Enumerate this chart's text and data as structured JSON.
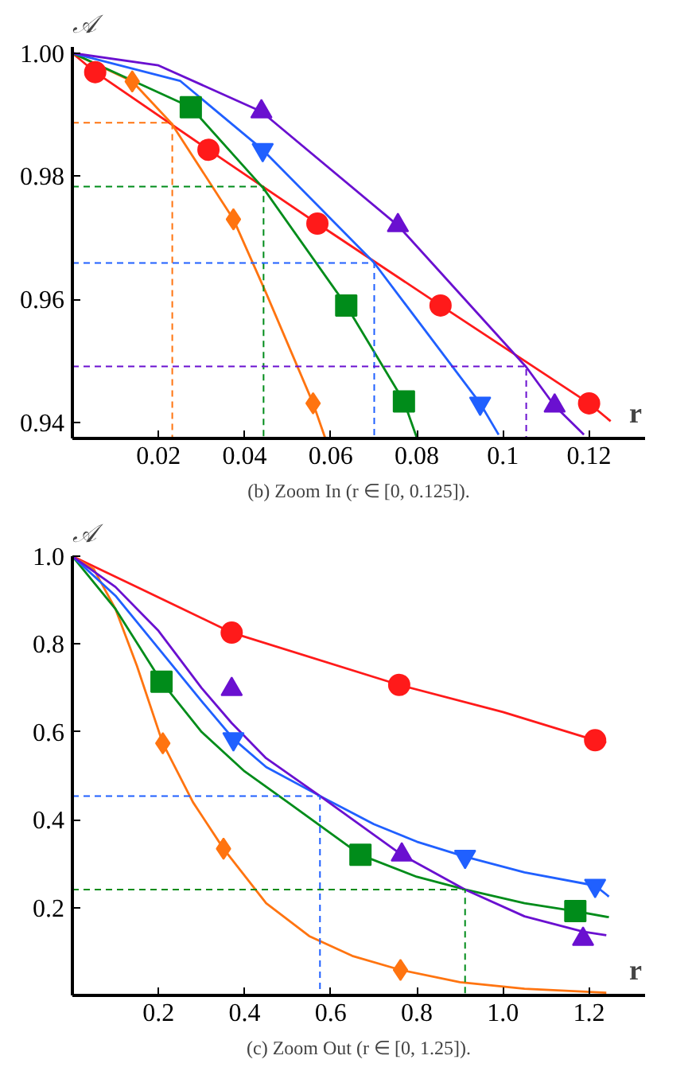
{
  "chart_data": [
    {
      "type": "line",
      "ylabel": "𝒜",
      "xlabel": "r",
      "annotations": [
        "(b) Zoom In (r ∈ [0, 0.125])."
      ],
      "xlim": [
        0,
        0.133
      ],
      "ylim": [
        0.9374,
        1.001
      ],
      "xticks": [
        0.02,
        0.04,
        0.06,
        0.08,
        0.1,
        0.12
      ],
      "yticks": [
        0.94,
        0.96,
        0.98,
        {
          "value": 1.0,
          "label": "1.00"
        }
      ],
      "grid": false,
      "series": [
        {
          "color": "#ff1a1a",
          "x": [
            0,
            0.0053,
            0.0316,
            0.0569,
            0.0855,
            0.12,
            0.125
          ],
          "values": [
            1.0,
            0.9969,
            0.9843,
            0.9723,
            0.959,
            0.9431,
            0.9402
          ]
        },
        {
          "color": "#ff7410",
          "x": [
            0,
            0.0139,
            0.023,
            0.0374,
            0.045,
            0.0559,
            0.0587
          ],
          "values": [
            1.0,
            0.9954,
            0.9886,
            0.973,
            0.961,
            0.9431,
            0.9375
          ]
        },
        {
          "color": "#008c1a",
          "x": [
            0,
            0.0275,
            0.0444,
            0.0636,
            0.077,
            0.08
          ],
          "values": [
            1.0,
            0.9912,
            0.978,
            0.959,
            0.9434,
            0.9375
          ]
        },
        {
          "color": "#2060ff",
          "x": [
            0,
            0.025,
            0.0442,
            0.07,
            0.0947,
            0.099
          ],
          "values": [
            1.0,
            0.9955,
            0.9843,
            0.966,
            0.9431,
            0.938
          ]
        },
        {
          "color": "#6a10d0",
          "x": [
            0,
            0.02,
            0.0439,
            0.0756,
            0.1054,
            0.112,
            0.1188
          ],
          "values": [
            1.0,
            0.998,
            0.9905,
            0.972,
            0.949,
            0.9427,
            0.938
          ]
        },
        {
          "type": "line",
          "line_style": "dashed",
          "color": "#ff7410",
          "x": [
            0,
            0.0232,
            0.0232
          ],
          "values": [
            0.9887,
            0.9887,
            0.9374
          ]
        },
        {
          "type": "line",
          "line_style": "dashed",
          "color": "#008c1a",
          "x": [
            0,
            0.0444,
            0.0444
          ],
          "values": [
            0.9783,
            0.9783,
            0.9374
          ]
        },
        {
          "type": "line",
          "line_style": "dashed",
          "color": "#2060ff",
          "x": [
            0,
            0.0701,
            0.0701
          ],
          "values": [
            0.9659,
            0.9659,
            0.9374
          ]
        },
        {
          "type": "line",
          "line_style": "dashed",
          "color": "#6a10d0",
          "x": [
            0,
            0.1054,
            0.1054
          ],
          "values": [
            0.9491,
            0.9491,
            0.9374
          ]
        },
        {
          "type": "scatter",
          "marker": "circle",
          "color": "#ff1a1a",
          "x": [
            0.0053,
            0.0316,
            0.0569,
            0.0855,
            0.12
          ],
          "values": [
            0.9969,
            0.9843,
            0.9723,
            0.959,
            0.9431
          ]
        },
        {
          "type": "scatter",
          "marker": "diamond",
          "color": "#ff7410",
          "x": [
            0.0139,
            0.0374,
            0.0559
          ],
          "values": [
            0.9954,
            0.973,
            0.9431
          ]
        },
        {
          "type": "scatter",
          "marker": "square",
          "color": "#008c1a",
          "x": [
            0.0275,
            0.0636,
            0.077
          ],
          "values": [
            0.9912,
            0.959,
            0.9434
          ]
        },
        {
          "type": "scatter",
          "marker": "triangle_down",
          "color": "#2060ff",
          "x": [
            0.0442,
            0.0947
          ],
          "values": [
            0.9843,
            0.9431
          ]
        },
        {
          "type": "scatter",
          "marker": "triangle",
          "color": "#6a10d0",
          "x": [
            0.0439,
            0.0756,
            0.112
          ],
          "values": [
            0.9905,
            0.972,
            0.9427
          ]
        }
      ]
    },
    {
      "type": "line",
      "ylabel": "𝒜",
      "xlabel": "r",
      "annotations": [
        "(c) Zoom Out (r ∈ [0, 1.25])."
      ],
      "xlim": [
        0,
        1.33
      ],
      "ylim": [
        0,
        1.0
      ],
      "xticks": [
        0.2,
        0.4,
        0.6,
        0.8,
        {
          "value": 1.0,
          "label": "1.0"
        },
        1.2
      ],
      "yticks": [
        0.2,
        0.4,
        0.6,
        0.8,
        {
          "value": 1.0,
          "label": "1.0"
        }
      ],
      "grid": false,
      "series": [
        {
          "color": "#ff1a1a",
          "x": [
            0,
            0.15,
            0.37,
            0.759,
            1.0,
            1.214,
            1.24
          ],
          "values": [
            1.0,
            0.93,
            0.826,
            0.707,
            0.645,
            0.581,
            0.576
          ]
        },
        {
          "color": "#ff7410",
          "x": [
            0,
            0.05,
            0.1,
            0.15,
            0.21,
            0.28,
            0.351,
            0.45,
            0.55,
            0.65,
            0.762,
            0.9,
            1.05,
            1.24
          ],
          "values": [
            1.0,
            0.97,
            0.88,
            0.75,
            0.574,
            0.44,
            0.334,
            0.21,
            0.135,
            0.09,
            0.058,
            0.03,
            0.015,
            0.006
          ]
        },
        {
          "color": "#008c1a",
          "x": [
            0,
            0.1,
            0.207,
            0.3,
            0.4,
            0.5,
            0.669,
            0.8,
            0.912,
            1.05,
            1.168,
            1.246
          ],
          "values": [
            1.0,
            0.88,
            0.714,
            0.6,
            0.51,
            0.44,
            0.32,
            0.27,
            0.241,
            0.21,
            0.192,
            0.178
          ]
        },
        {
          "color": "#2060ff",
          "x": [
            0,
            0.1,
            0.2,
            0.3,
            0.374,
            0.45,
            0.575,
            0.7,
            0.8,
            0.912,
            1.05,
            1.214,
            1.246
          ],
          "values": [
            1.0,
            0.91,
            0.79,
            0.67,
            0.584,
            0.52,
            0.454,
            0.39,
            0.35,
            0.316,
            0.28,
            0.25,
            0.225
          ]
        },
        {
          "color": "#6a10d0",
          "x": [
            0,
            0.1,
            0.2,
            0.3,
            0.37,
            0.45,
            0.575,
            0.765,
            0.912,
            1.05,
            1.186,
            1.24
          ],
          "values": [
            1.0,
            0.93,
            0.83,
            0.7,
            0.62,
            0.54,
            0.454,
            0.32,
            0.241,
            0.18,
            0.145,
            0.137
          ]
        },
        {
          "type": "line",
          "line_style": "dashed",
          "color": "#2060ff",
          "x": [
            0,
            0.575,
            0.575
          ],
          "values": [
            0.454,
            0.454,
            0
          ]
        },
        {
          "type": "line",
          "line_style": "dashed",
          "color": "#008c1a",
          "x": [
            0,
            0.912,
            0.912
          ],
          "values": [
            0.241,
            0.241,
            0
          ]
        },
        {
          "type": "scatter",
          "marker": "circle",
          "color": "#ff1a1a",
          "x": [
            0.37,
            0.759,
            1.214
          ],
          "values": [
            0.826,
            0.707,
            0.581
          ]
        },
        {
          "type": "scatter",
          "marker": "diamond",
          "color": "#ff7410",
          "x": [
            0.21,
            0.351,
            0.762
          ],
          "values": [
            0.574,
            0.334,
            0.058
          ]
        },
        {
          "type": "scatter",
          "marker": "square",
          "color": "#008c1a",
          "x": [
            0.207,
            0.669,
            1.168
          ],
          "values": [
            0.714,
            0.32,
            0.192
          ]
        },
        {
          "type": "scatter",
          "marker": "triangle_down",
          "color": "#2060ff",
          "x": [
            0.374,
            0.912,
            1.214
          ],
          "values": [
            0.584,
            0.316,
            0.25
          ]
        },
        {
          "type": "scatter",
          "marker": "triangle",
          "color": "#6a10d0",
          "x": [
            0.37,
            0.765,
            1.186
          ],
          "values": [
            0.697,
            0.32,
            0.128
          ]
        }
      ]
    }
  ]
}
